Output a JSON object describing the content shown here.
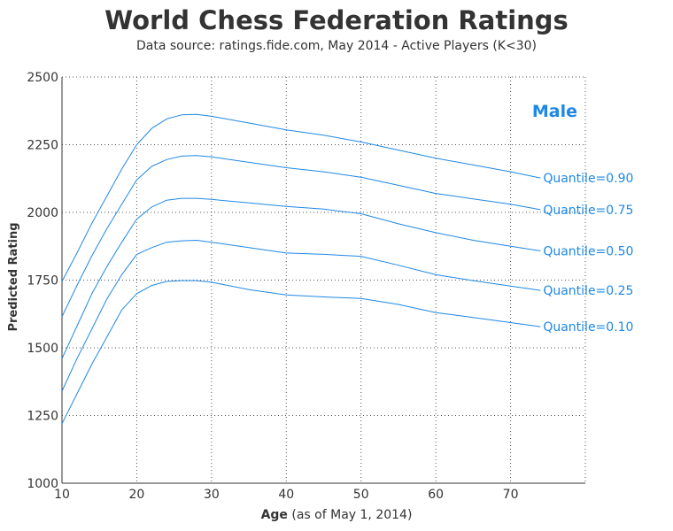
{
  "chart_data": {
    "type": "line",
    "title": "World Chess Federation Ratings",
    "subtitle": "Data source: ratings.fide.com, May 2014 - Active Players (K<30)",
    "xlabel_bold": "Age",
    "xlabel_rest": "(as of May 1, 2014)",
    "ylabel": "Predicted Rating",
    "xlim": [
      10,
      80
    ],
    "ylim": [
      1000,
      2500
    ],
    "xticks": [
      10,
      20,
      30,
      40,
      50,
      60,
      70
    ],
    "yticks": [
      1000,
      1250,
      1500,
      1750,
      2000,
      2250,
      2500
    ],
    "grid": true,
    "annotation": "Male",
    "color": "#1e88e5",
    "x": [
      10,
      12,
      14,
      16,
      18,
      20,
      22,
      24,
      26,
      28,
      30,
      35,
      40,
      45,
      50,
      55,
      60,
      65,
      70,
      74
    ],
    "series": [
      {
        "name": "Quantile=0.90",
        "values": [
          1745,
          1850,
          1960,
          2060,
          2160,
          2250,
          2310,
          2345,
          2360,
          2362,
          2355,
          2330,
          2305,
          2285,
          2260,
          2230,
          2200,
          2175,
          2150,
          2127
        ]
      },
      {
        "name": "Quantile=0.75",
        "values": [
          1615,
          1730,
          1840,
          1940,
          2030,
          2120,
          2170,
          2195,
          2208,
          2210,
          2205,
          2185,
          2165,
          2150,
          2130,
          2100,
          2070,
          2050,
          2030,
          2010
        ]
      },
      {
        "name": "Quantile=0.50",
        "values": [
          1460,
          1580,
          1700,
          1800,
          1890,
          1975,
          2020,
          2045,
          2052,
          2052,
          2048,
          2035,
          2022,
          2012,
          1995,
          1958,
          1925,
          1897,
          1875,
          1858
        ]
      },
      {
        "name": "Quantile=0.25",
        "values": [
          1340,
          1460,
          1570,
          1680,
          1770,
          1845,
          1870,
          1890,
          1895,
          1897,
          1890,
          1870,
          1850,
          1845,
          1838,
          1805,
          1770,
          1748,
          1728,
          1712
        ]
      },
      {
        "name": "Quantile=0.10",
        "values": [
          1220,
          1330,
          1440,
          1540,
          1640,
          1700,
          1730,
          1745,
          1748,
          1748,
          1742,
          1715,
          1695,
          1688,
          1682,
          1660,
          1630,
          1612,
          1593,
          1578
        ]
      }
    ]
  }
}
